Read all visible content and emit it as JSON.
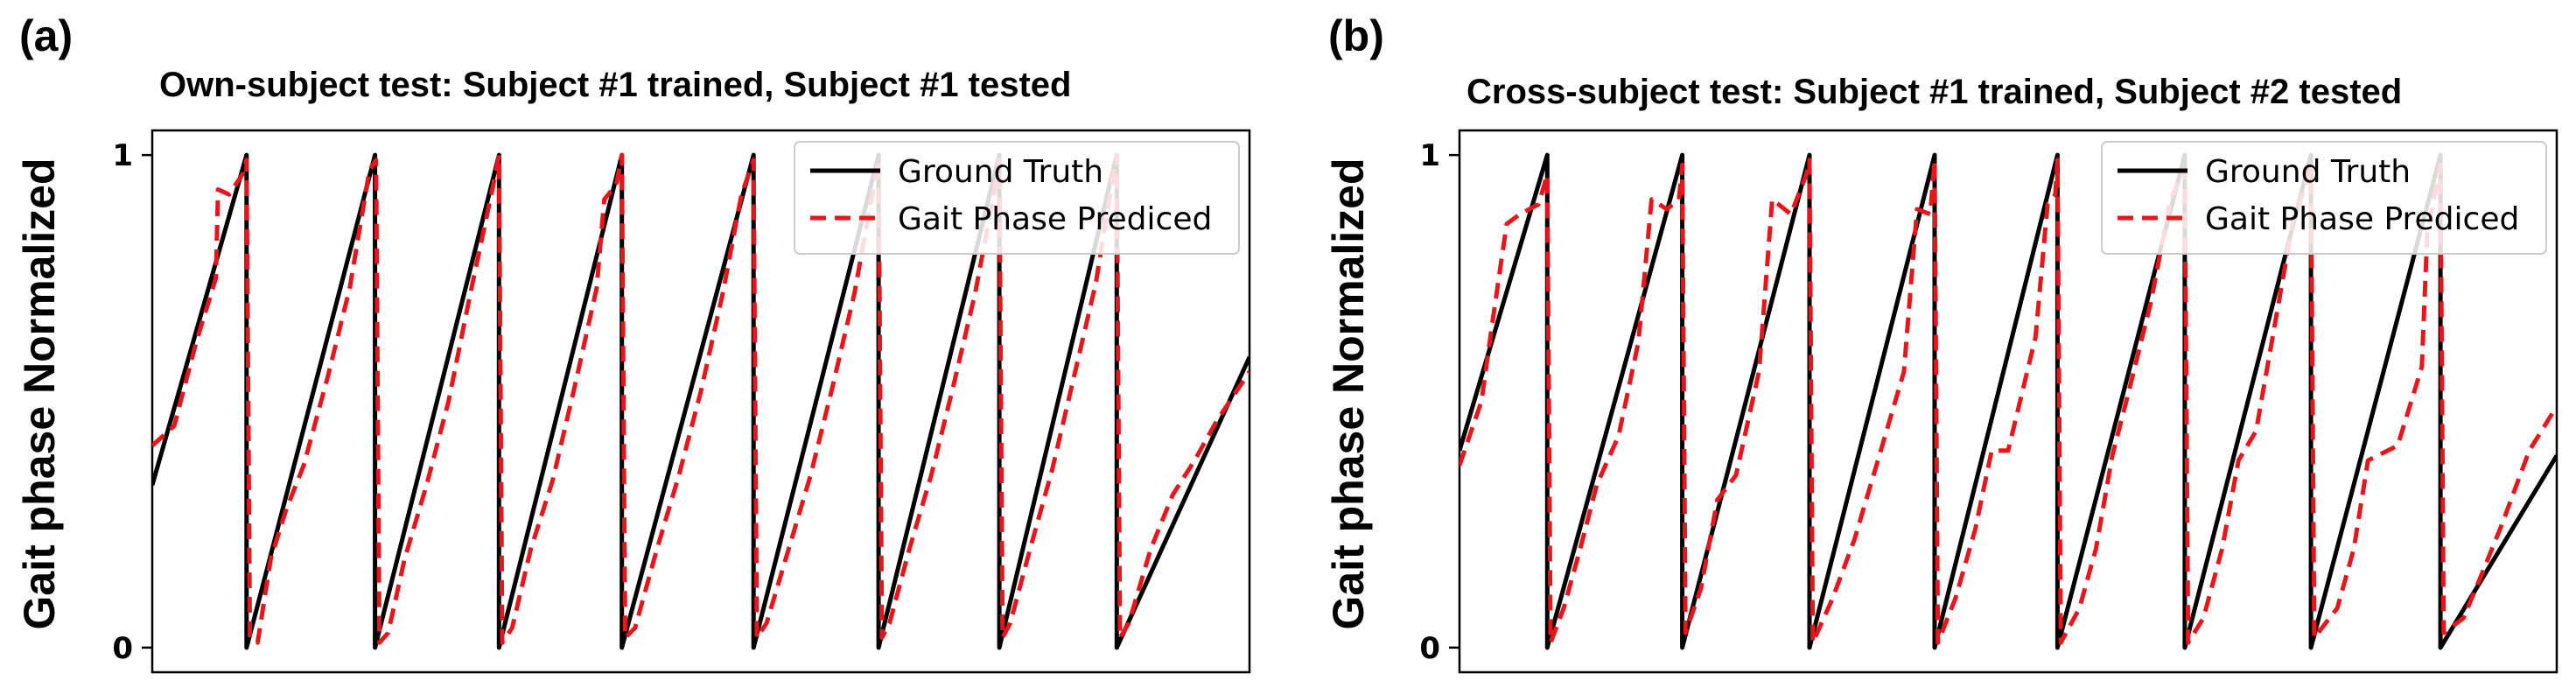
{
  "chart_data": [
    {
      "type": "line",
      "panel_label": "(a)",
      "title": "Own-subject test: Subject #1 trained, Subject #1 tested",
      "xlabel": "",
      "ylabel": "Gait phase Normalized",
      "xlim": [
        0,
        100
      ],
      "ylim": [
        -0.05,
        1.05
      ],
      "yticks": [
        {
          "value": 0,
          "label": "0"
        },
        {
          "value": 1,
          "label": "1"
        }
      ],
      "xticks": [],
      "legend_position": "top-right",
      "colors": {
        "ground_truth": "#000000",
        "predicted": "#e8161b"
      },
      "series": [
        {
          "name": "Ground Truth",
          "style": "solid",
          "points": [
            [
              0,
              0.33
            ],
            [
              8.6,
              1
            ],
            [
              8.6,
              0
            ],
            [
              20.3,
              1
            ],
            [
              20.3,
              0
            ],
            [
              31.6,
              1
            ],
            [
              31.6,
              0
            ],
            [
              42.8,
              1
            ],
            [
              42.8,
              0
            ],
            [
              54.8,
              1
            ],
            [
              54.8,
              0
            ],
            [
              66.2,
              1
            ],
            [
              66.2,
              0
            ],
            [
              77.2,
              1
            ],
            [
              77.2,
              0
            ],
            [
              87.9,
              1
            ],
            [
              87.9,
              0
            ],
            [
              100,
              0.59
            ]
          ]
        },
        {
          "name": "Gait Phase Prediced",
          "style": "dashed",
          "points": [
            [
              0,
              0.41
            ],
            [
              2,
              0.45
            ],
            [
              4,
              0.62
            ],
            [
              5.8,
              0.75
            ],
            [
              6,
              0.93
            ],
            [
              7,
              0.92
            ],
            [
              8.2,
              0.96
            ],
            [
              8.6,
              0.99
            ],
            [
              8.9,
              0.02
            ],
            [
              9.6,
              0.01
            ],
            [
              10.8,
              0.18
            ],
            [
              12.2,
              0.28
            ],
            [
              13.8,
              0.37
            ],
            [
              16,
              0.55
            ],
            [
              18,
              0.73
            ],
            [
              19.8,
              0.97
            ],
            [
              20.4,
              0.99
            ],
            [
              20.7,
              0.01
            ],
            [
              21.5,
              0.03
            ],
            [
              23,
              0.18
            ],
            [
              25,
              0.33
            ],
            [
              27,
              0.5
            ],
            [
              29,
              0.72
            ],
            [
              31,
              0.93
            ],
            [
              31.6,
              1
            ],
            [
              31.9,
              0.01
            ],
            [
              32.8,
              0.04
            ],
            [
              34.5,
              0.2
            ],
            [
              36.5,
              0.34
            ],
            [
              38.5,
              0.53
            ],
            [
              40.5,
              0.73
            ],
            [
              41.2,
              0.91
            ],
            [
              42.3,
              0.94
            ],
            [
              42.8,
              1
            ],
            [
              43.1,
              0.02
            ],
            [
              44,
              0.04
            ],
            [
              46,
              0.2
            ],
            [
              48,
              0.35
            ],
            [
              50,
              0.52
            ],
            [
              52,
              0.72
            ],
            [
              53.7,
              0.92
            ],
            [
              54.5,
              0.97
            ],
            [
              54.8,
              0.99
            ],
            [
              55.1,
              0.02
            ],
            [
              56,
              0.05
            ],
            [
              58,
              0.2
            ],
            [
              60,
              0.35
            ],
            [
              62,
              0.53
            ],
            [
              64,
              0.72
            ],
            [
              65.7,
              0.93
            ],
            [
              66.2,
              0.99
            ],
            [
              66.5,
              0.02
            ],
            [
              67.2,
              0.05
            ],
            [
              69,
              0.2
            ],
            [
              71,
              0.35
            ],
            [
              73,
              0.53
            ],
            [
              75,
              0.72
            ],
            [
              76.7,
              0.92
            ],
            [
              77.2,
              0.99
            ],
            [
              77.5,
              0.02
            ],
            [
              78.2,
              0.05
            ],
            [
              80,
              0.2
            ],
            [
              82,
              0.36
            ],
            [
              84,
              0.55
            ],
            [
              86,
              0.74
            ],
            [
              87.5,
              0.95
            ],
            [
              87.9,
              1
            ],
            [
              88.2,
              0.02
            ],
            [
              89,
              0.05
            ],
            [
              91,
              0.2
            ],
            [
              93,
              0.31
            ],
            [
              95,
              0.38
            ],
            [
              97,
              0.46
            ],
            [
              100,
              0.56
            ]
          ]
        }
      ]
    },
    {
      "type": "line",
      "panel_label": "(b)",
      "title": "Cross-subject test: Subject #1 trained, Subject #2 tested",
      "xlabel": "",
      "ylabel": "Gait phase Normalized",
      "xlim": [
        0,
        100
      ],
      "ylim": [
        -0.05,
        1.05
      ],
      "yticks": [
        {
          "value": 0,
          "label": "0"
        },
        {
          "value": 1,
          "label": "1"
        }
      ],
      "xticks": [],
      "legend_position": "top-right",
      "colors": {
        "ground_truth": "#000000",
        "predicted": "#e8161b"
      },
      "series": [
        {
          "name": "Ground Truth",
          "style": "solid",
          "points": [
            [
              0,
              0.4
            ],
            [
              8,
              1
            ],
            [
              8,
              0
            ],
            [
              20.3,
              1
            ],
            [
              20.3,
              0
            ],
            [
              31.9,
              1
            ],
            [
              31.9,
              0
            ],
            [
              43.3,
              1
            ],
            [
              43.3,
              0
            ],
            [
              54.5,
              1
            ],
            [
              54.5,
              0
            ],
            [
              66.1,
              1
            ],
            [
              66.1,
              0
            ],
            [
              77.6,
              1
            ],
            [
              77.6,
              0
            ],
            [
              89.4,
              1
            ],
            [
              89.4,
              0
            ],
            [
              100,
              0.39
            ]
          ]
        },
        {
          "name": "Gait Phase Prediced",
          "style": "dashed",
          "points": [
            [
              0,
              0.37
            ],
            [
              2,
              0.5
            ],
            [
              3,
              0.66
            ],
            [
              4.3,
              0.86
            ],
            [
              5.5,
              0.88
            ],
            [
              7.2,
              0.9
            ],
            [
              8,
              0.96
            ],
            [
              8.3,
              0.01
            ],
            [
              9.5,
              0.08
            ],
            [
              11,
              0.2
            ],
            [
              12.5,
              0.33
            ],
            [
              14.5,
              0.43
            ],
            [
              16.3,
              0.62
            ],
            [
              17.5,
              0.91
            ],
            [
              18.9,
              0.89
            ],
            [
              20,
              0.91
            ],
            [
              20.3,
              0.98
            ],
            [
              20.6,
              0.03
            ],
            [
              22,
              0.12
            ],
            [
              23.5,
              0.3
            ],
            [
              25.2,
              0.35
            ],
            [
              27.3,
              0.56
            ],
            [
              28.5,
              0.91
            ],
            [
              30.2,
              0.88
            ],
            [
              31.6,
              0.96
            ],
            [
              31.9,
              0.99
            ],
            [
              32.2,
              0.01
            ],
            [
              34,
              0.1
            ],
            [
              36,
              0.22
            ],
            [
              38,
              0.37
            ],
            [
              40.5,
              0.56
            ],
            [
              41.7,
              0.89
            ],
            [
              42.9,
              0.88
            ],
            [
              43.3,
              0.99
            ],
            [
              43.6,
              0.01
            ],
            [
              45.2,
              0.1
            ],
            [
              47,
              0.24
            ],
            [
              48.5,
              0.4
            ],
            [
              50,
              0.4
            ],
            [
              52.5,
              0.63
            ],
            [
              53.6,
              0.9
            ],
            [
              54.3,
              0.92
            ],
            [
              54.5,
              0.99
            ],
            [
              54.8,
              0.01
            ],
            [
              56.5,
              0.08
            ],
            [
              58,
              0.2
            ],
            [
              59.5,
              0.39
            ],
            [
              61,
              0.52
            ],
            [
              63,
              0.7
            ],
            [
              64.8,
              0.91
            ],
            [
              66.1,
              0.97
            ],
            [
              66.4,
              0.01
            ],
            [
              67.8,
              0.06
            ],
            [
              69.5,
              0.2
            ],
            [
              71,
              0.38
            ],
            [
              72.6,
              0.44
            ],
            [
              74.5,
              0.68
            ],
            [
              76,
              0.87
            ],
            [
              77.6,
              0.97
            ],
            [
              77.9,
              0.02
            ],
            [
              80,
              0.08
            ],
            [
              81.5,
              0.2
            ],
            [
              82.8,
              0.38
            ],
            [
              85.5,
              0.41
            ],
            [
              87.7,
              0.57
            ],
            [
              88.2,
              0.84
            ],
            [
              89.4,
              0.98
            ],
            [
              89.7,
              0.03
            ],
            [
              91.5,
              0.06
            ],
            [
              93,
              0.14
            ],
            [
              95,
              0.25
            ],
            [
              97.5,
              0.4
            ],
            [
              100,
              0.49
            ]
          ]
        }
      ]
    }
  ]
}
